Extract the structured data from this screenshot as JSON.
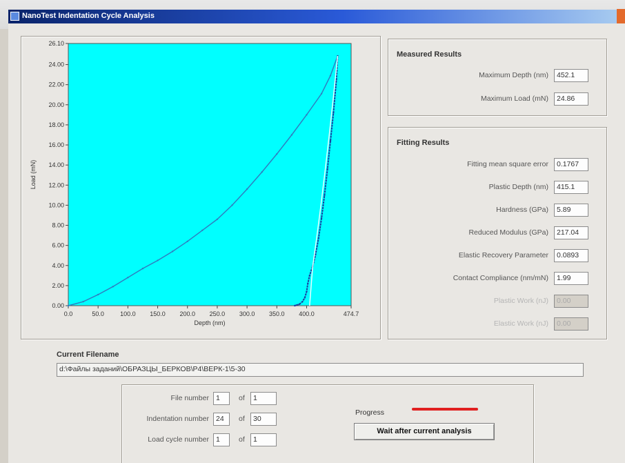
{
  "window": {
    "title": "NanoTest Indentation Cycle Analysis"
  },
  "measured": {
    "title": "Measured Results",
    "max_depth_label": "Maximum Depth (nm)",
    "max_depth_value": "452.1",
    "max_load_label": "Maximum Load (mN)",
    "max_load_value": "24.86"
  },
  "fitting": {
    "title": "Fitting Results",
    "rows": [
      {
        "label": "Fitting mean square error",
        "value": "0.1767",
        "disabled": false
      },
      {
        "label": "Plastic Depth (nm)",
        "value": "415.1",
        "disabled": false
      },
      {
        "label": "Hardness (GPa)",
        "value": "5.89",
        "disabled": false
      },
      {
        "label": "Reduced Modulus (GPa)",
        "value": "217.04",
        "disabled": false
      },
      {
        "label": "Elastic Recovery Parameter",
        "value": "0.0893",
        "disabled": false
      },
      {
        "label": "Contact Compliance (nm/mN)",
        "value": "1.99",
        "disabled": false
      },
      {
        "label": "Plastic Work (nJ)",
        "value": "0.00",
        "disabled": true
      },
      {
        "label": "Elastic Work (nJ)",
        "value": "0.00",
        "disabled": true
      }
    ]
  },
  "filename": {
    "title": "Current Filename",
    "value": "d:\\Файлы заданий\\ОБРАЗЦЫ_БЕРКОВ\\Р4\\ВЕРК-1\\5-30"
  },
  "counters": {
    "file_label": "File number",
    "file_value": "1",
    "file_total": "1",
    "indent_label": "Indentation number",
    "indent_value": "24",
    "indent_total": "30",
    "cycle_label": "Load cycle number",
    "cycle_value": "1",
    "cycle_total": "1",
    "of_label": "of"
  },
  "progress": {
    "label": "Progress",
    "fraction": 1.0,
    "color": "#e02020"
  },
  "wait_button": {
    "label": "Wait after current analysis"
  },
  "chart_data": {
    "type": "line",
    "xlabel": "Depth (nm)",
    "ylabel": "Load (mN)",
    "xlim": [
      0,
      474.7
    ],
    "ylim": [
      0,
      26.1
    ],
    "x_ticks": [
      "0.0",
      "50.0",
      "100.0",
      "150.0",
      "200.0",
      "250.0",
      "300.0",
      "350.0",
      "400.0",
      "474.7"
    ],
    "x_tick_values": [
      0,
      50,
      100,
      150,
      200,
      250,
      300,
      350,
      400,
      474.7
    ],
    "y_ticks": [
      "0.00",
      "2.00",
      "4.00",
      "6.00",
      "8.00",
      "10.00",
      "12.00",
      "14.00",
      "16.00",
      "18.00",
      "20.00",
      "22.00",
      "24.00",
      "26.10"
    ],
    "y_tick_values": [
      0,
      2,
      4,
      6,
      8,
      10,
      12,
      14,
      16,
      18,
      20,
      22,
      24,
      26.1
    ],
    "background": "#00ffff",
    "series": [
      {
        "role": "loading",
        "color": "#2e7fc0",
        "x": [
          0,
          25,
          50,
          75,
          100,
          125,
          150,
          175,
          200,
          225,
          250,
          275,
          300,
          325,
          350,
          375,
          400,
          425,
          440,
          452.1
        ],
        "y": [
          0,
          0.4,
          1.1,
          1.9,
          2.8,
          3.7,
          4.5,
          5.4,
          6.4,
          7.5,
          8.6,
          10.0,
          11.6,
          13.3,
          15.1,
          17.0,
          19.0,
          21.1,
          22.9,
          24.86
        ]
      },
      {
        "role": "unloading",
        "color": "#1a3ea0",
        "x": [
          452.1,
          450,
          445,
          440,
          435,
          430,
          425,
          420,
          415,
          410,
          405,
          402,
          400,
          397,
          393,
          388,
          383,
          380
        ],
        "y": [
          24.86,
          22.5,
          19.2,
          16.4,
          13.6,
          11.0,
          8.7,
          6.7,
          5.1,
          3.9,
          3.0,
          2.2,
          1.4,
          0.8,
          0.4,
          0.15,
          0.05,
          0
        ]
      },
      {
        "role": "fit",
        "color": "#e8ffff",
        "x": [
          452.1,
          445,
          438,
          431,
          424,
          417,
          410,
          405
        ],
        "y": [
          24.86,
          20.8,
          17.0,
          13.4,
          10.0,
          6.8,
          3.8,
          0
        ]
      }
    ]
  }
}
